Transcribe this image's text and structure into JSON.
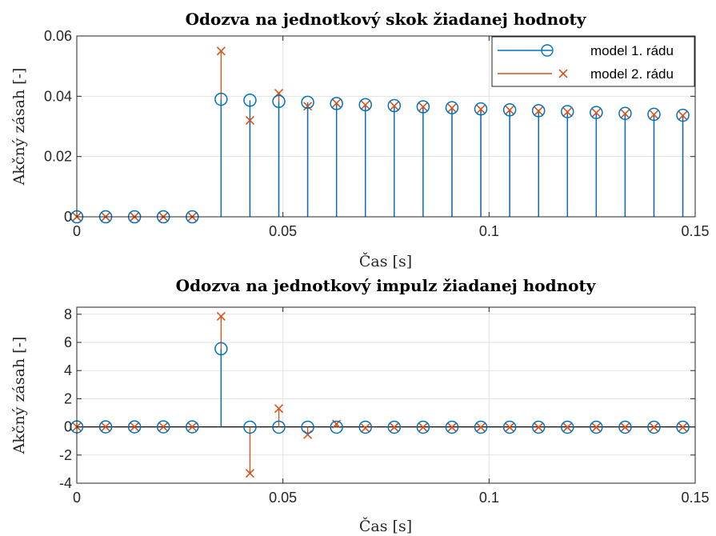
{
  "chart_data": [
    {
      "type": "stem",
      "title": "Odozva na jednotkový skok žiadanej hodnoty",
      "xlabel": "Čas [s]",
      "ylabel": "Akčný zásah [-]",
      "xlim": [
        0,
        0.15
      ],
      "ylim": [
        0,
        0.06
      ],
      "xticks": [
        0,
        0.05,
        0.1,
        0.15
      ],
      "xtick_labels": [
        "0",
        "0.05",
        "0.1",
        "0.15"
      ],
      "yticks": [
        0,
        0.02,
        0.04,
        0.06
      ],
      "ytick_labels": [
        "0",
        "0.02",
        "0.04",
        "0.06"
      ],
      "grid": true,
      "legend_position": "top-right",
      "x": [
        0,
        0.007,
        0.014,
        0.021,
        0.028,
        0.035,
        0.042,
        0.049,
        0.056,
        0.063,
        0.07,
        0.077,
        0.084,
        0.091,
        0.098,
        0.105,
        0.112,
        0.119,
        0.126,
        0.133,
        0.14,
        0.147
      ],
      "series": [
        {
          "name": "model 1. rádu",
          "color": "#0072BD",
          "marker": "circle",
          "values": [
            0,
            0,
            0,
            0,
            0,
            0.039,
            0.0387,
            0.0383,
            0.038,
            0.0376,
            0.0372,
            0.0369,
            0.0365,
            0.0362,
            0.0358,
            0.0355,
            0.0352,
            0.0349,
            0.0346,
            0.0343,
            0.034,
            0.0337
          ]
        },
        {
          "name": "model 2. rádu",
          "color": "#D95319",
          "marker": "x",
          "values": [
            0,
            0,
            0,
            0,
            0,
            0.055,
            0.032,
            0.041,
            0.0367,
            0.0377,
            0.0371,
            0.0368,
            0.0365,
            0.0361,
            0.0357,
            0.0354,
            0.0351,
            0.0348,
            0.0345,
            0.0342,
            0.0339,
            0.0336
          ]
        }
      ]
    },
    {
      "type": "stem",
      "title": "Odozva na jednotkový impulz žiadanej hodnoty",
      "xlabel": "Čas [s]",
      "ylabel": "Akčný zásah [-]",
      "xlim": [
        0,
        0.15
      ],
      "ylim": [
        -4,
        8.5
      ],
      "xticks": [
        0,
        0.05,
        0.1,
        0.15
      ],
      "xtick_labels": [
        "0",
        "0.05",
        "0.1",
        "0.15"
      ],
      "yticks": [
        -4,
        -2,
        0,
        2,
        4,
        6,
        8
      ],
      "ytick_labels": [
        "-4",
        "-2",
        "0",
        "2",
        "4",
        "6",
        "8"
      ],
      "grid": true,
      "x": [
        0,
        0.007,
        0.014,
        0.021,
        0.028,
        0.035,
        0.042,
        0.049,
        0.056,
        0.063,
        0.07,
        0.077,
        0.084,
        0.091,
        0.098,
        0.105,
        0.112,
        0.119,
        0.126,
        0.133,
        0.14,
        0.147
      ],
      "series": [
        {
          "name": "model 1. rádu",
          "color": "#0072BD",
          "marker": "circle",
          "values": [
            0,
            0,
            0,
            0,
            0,
            5.55,
            -0.02,
            -0.02,
            -0.02,
            -0.02,
            -0.02,
            -0.02,
            -0.02,
            -0.02,
            -0.02,
            -0.02,
            -0.02,
            -0.02,
            -0.02,
            -0.02,
            -0.02,
            -0.02
          ]
        },
        {
          "name": "model 2. rádu",
          "color": "#D95319",
          "marker": "x",
          "values": [
            0,
            0,
            0,
            0,
            0,
            7.85,
            -3.3,
            1.3,
            -0.55,
            0.2,
            -0.08,
            -0.03,
            -0.03,
            -0.03,
            -0.03,
            -0.03,
            -0.03,
            -0.03,
            -0.03,
            -0.03,
            -0.03,
            -0.03
          ]
        }
      ]
    }
  ]
}
